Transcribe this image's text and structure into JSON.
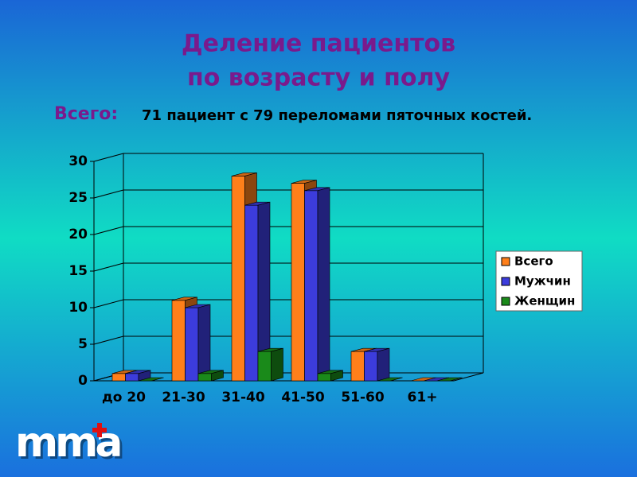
{
  "chart_data": {
    "type": "bar3d",
    "title": [
      "Деление пациентов",
      "по возрасту и полу"
    ],
    "subtitle_label": "Всего:",
    "subtitle": "71 пациент с 79 переломами пяточных костей.",
    "categories": [
      "до 20",
      "21-30",
      "31-40",
      "41-50",
      "51-60",
      "61+"
    ],
    "series": [
      {
        "name": "Всего",
        "color": "#ff7f1a",
        "values": [
          1,
          11,
          28,
          27,
          4,
          0
        ]
      },
      {
        "name": "Мужчин",
        "color": "#3c3cdc",
        "values": [
          1,
          10,
          24,
          26,
          4,
          0
        ]
      },
      {
        "name": "Женщин",
        "color": "#1a8a1a",
        "values": [
          0,
          1,
          4,
          1,
          0,
          0
        ]
      }
    ],
    "ylim": [
      0,
      30
    ],
    "yticks": [
      0,
      5,
      10,
      15,
      20,
      25,
      30
    ],
    "grid": true,
    "legend": "right",
    "logo_text": "mma"
  }
}
